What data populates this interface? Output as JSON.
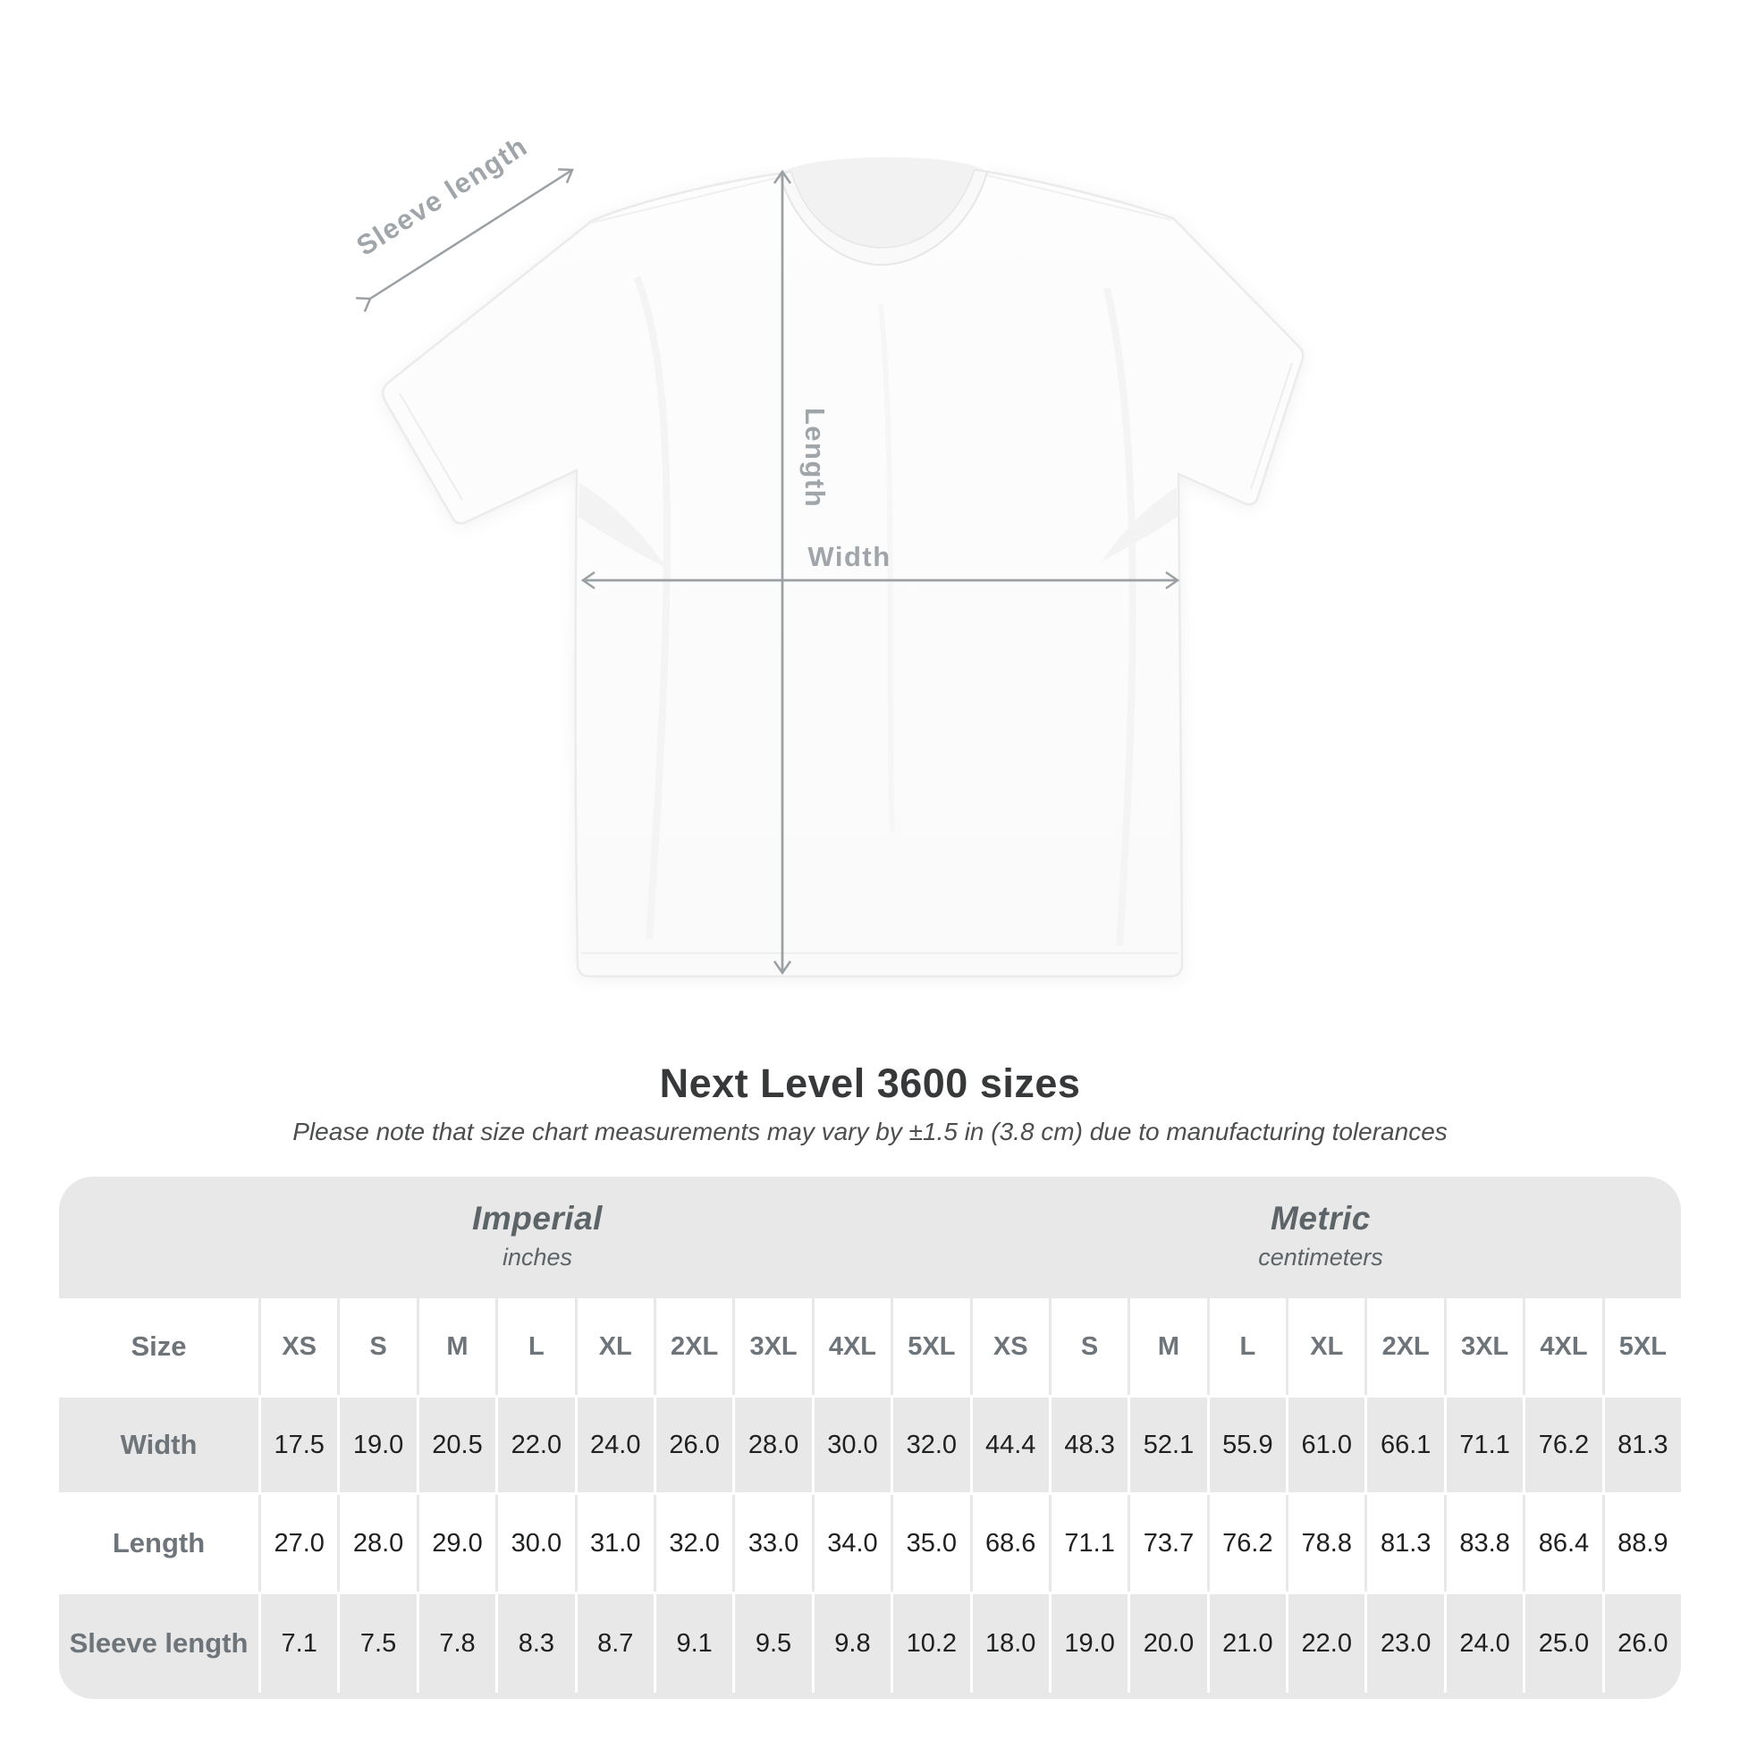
{
  "title": "Next Level 3600 sizes",
  "subtitle": "Please note that size chart measurements may vary by ±1.5 in (3.8 cm) due to manufacturing tolerances",
  "diagram": {
    "sleeve_label": "Sleeve length",
    "length_label": "Length",
    "width_label": "Width"
  },
  "table": {
    "size_label": "Size",
    "groups": [
      {
        "name": "Imperial",
        "unit": "inches"
      },
      {
        "name": "Metric",
        "unit": "centimeters"
      }
    ],
    "sizes": [
      "XS",
      "S",
      "M",
      "L",
      "XL",
      "2XL",
      "3XL",
      "4XL",
      "5XL",
      "XS",
      "S",
      "M",
      "L",
      "XL",
      "2XL",
      "3XL",
      "4XL",
      "5XL"
    ],
    "rows": [
      {
        "label": "Width",
        "values": [
          "17.5",
          "19.0",
          "20.5",
          "22.0",
          "24.0",
          "26.0",
          "28.0",
          "30.0",
          "32.0",
          "44.4",
          "48.3",
          "52.1",
          "55.9",
          "61.0",
          "66.1",
          "71.1",
          "76.2",
          "81.3"
        ]
      },
      {
        "label": "Length",
        "values": [
          "27.0",
          "28.0",
          "29.0",
          "30.0",
          "31.0",
          "32.0",
          "33.0",
          "34.0",
          "35.0",
          "68.6",
          "71.1",
          "73.7",
          "76.2",
          "78.8",
          "81.3",
          "83.8",
          "86.4",
          "88.9"
        ]
      },
      {
        "label": "Sleeve length",
        "values": [
          "7.1",
          "7.5",
          "7.8",
          "8.3",
          "8.7",
          "9.1",
          "9.5",
          "9.8",
          "10.2",
          "18.0",
          "19.0",
          "20.0",
          "21.0",
          "22.0",
          "23.0",
          "24.0",
          "25.0",
          "26.0"
        ]
      }
    ]
  },
  "colors": {
    "table_background": "#e8e8e8",
    "cell_white": "#ffffff",
    "value_text": "#1f2021",
    "label_text": "#6d747a",
    "unit_header_text": "#5d6467",
    "diagram_gray": "#9fa5a9",
    "title_text": "#363839"
  },
  "chart_data": {
    "type": "table",
    "title": "Next Level 3600 sizes",
    "note": "Please note that size chart measurements may vary by ±1.5 in (3.8 cm) due to manufacturing tolerances",
    "unit_groups": [
      {
        "name": "Imperial",
        "unit": "inches",
        "sizes": [
          "XS",
          "S",
          "M",
          "L",
          "XL",
          "2XL",
          "3XL",
          "4XL",
          "5XL"
        ],
        "rows": {
          "Width": [
            17.5,
            19.0,
            20.5,
            22.0,
            24.0,
            26.0,
            28.0,
            30.0,
            32.0
          ],
          "Length": [
            27.0,
            28.0,
            29.0,
            30.0,
            31.0,
            32.0,
            33.0,
            34.0,
            35.0
          ],
          "Sleeve length": [
            7.1,
            7.5,
            7.8,
            8.3,
            8.7,
            9.1,
            9.5,
            9.8,
            10.2
          ]
        }
      },
      {
        "name": "Metric",
        "unit": "centimeters",
        "sizes": [
          "XS",
          "S",
          "M",
          "L",
          "XL",
          "2XL",
          "3XL",
          "4XL",
          "5XL"
        ],
        "rows": {
          "Width": [
            44.4,
            48.3,
            52.1,
            55.9,
            61.0,
            66.1,
            71.1,
            76.2,
            81.3
          ],
          "Length": [
            68.6,
            71.1,
            73.7,
            76.2,
            78.8,
            81.3,
            83.8,
            86.4,
            88.9
          ],
          "Sleeve length": [
            18.0,
            19.0,
            20.0,
            21.0,
            22.0,
            23.0,
            24.0,
            25.0,
            26.0
          ]
        }
      }
    ]
  }
}
